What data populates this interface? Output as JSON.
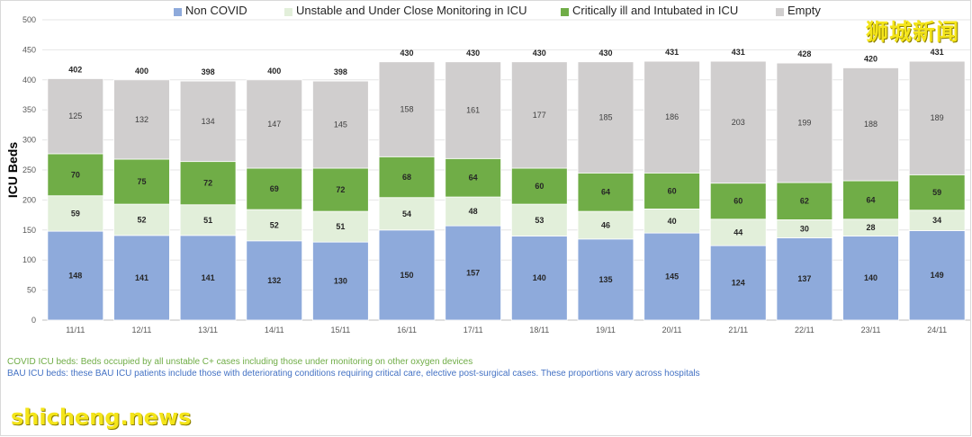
{
  "chart_data": {
    "type": "bar",
    "stacked": true,
    "categories": [
      "11/11",
      "12/11",
      "13/11",
      "14/11",
      "15/11",
      "16/11",
      "17/11",
      "18/11",
      "19/11",
      "20/11",
      "21/11",
      "22/11",
      "23/11",
      "24/11"
    ],
    "series": [
      {
        "name": "Non COVID",
        "color": "#8eaadb",
        "values": [
          148,
          141,
          141,
          132,
          130,
          150,
          157,
          140,
          135,
          145,
          124,
          137,
          140,
          149
        ]
      },
      {
        "name": "Unstable and Under Close Monitoring in ICU",
        "color": "#e2efda",
        "values": [
          59,
          52,
          51,
          52,
          51,
          54,
          48,
          53,
          46,
          40,
          44,
          30,
          28,
          34
        ]
      },
      {
        "name": "Critically ill and Intubated in ICU",
        "color": "#70ad47",
        "values": [
          70,
          75,
          72,
          69,
          72,
          68,
          64,
          60,
          64,
          60,
          60,
          62,
          64,
          59
        ]
      },
      {
        "name": "Empty",
        "color": "#d0cece",
        "values": [
          125,
          132,
          134,
          147,
          145,
          158,
          161,
          177,
          185,
          186,
          203,
          199,
          188,
          189
        ]
      }
    ],
    "totals": [
      402,
      400,
      398,
      400,
      398,
      430,
      430,
      430,
      430,
      431,
      431,
      428,
      420,
      431
    ],
    "title": "",
    "xlabel": "",
    "ylabel": "ICU Beds",
    "ylim": [
      0,
      500
    ],
    "yticks": [
      0,
      50,
      100,
      150,
      200,
      250,
      300,
      350,
      400,
      450,
      500
    ],
    "grid": true,
    "legend": "top"
  },
  "notes": {
    "covid": "COVID ICU beds: Beds occupied by all unstable C+ cases including those under monitoring on other oxygen devices",
    "bau": "BAU ICU beds: these BAU ICU patients include those with deteriorating conditions requiring critical care, elective post-surgical cases. These proportions vary across hospitals",
    "covid_color": "#70ad47",
    "bau_color": "#4472c4"
  },
  "watermark": {
    "cn": "狮城新闻",
    "en": "shicheng.news"
  }
}
